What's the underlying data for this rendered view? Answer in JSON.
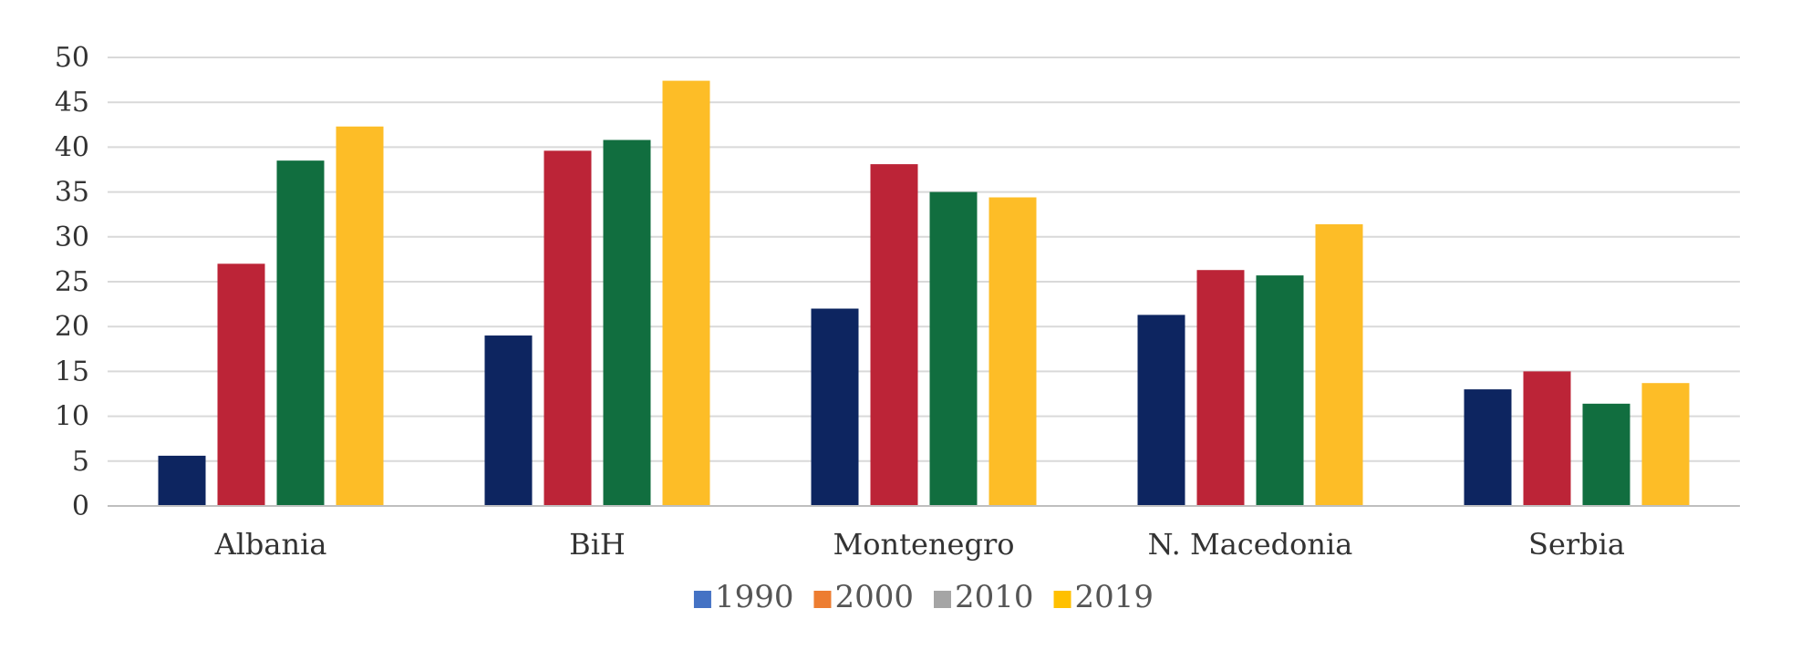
{
  "chart_data": {
    "type": "bar",
    "title": "",
    "xlabel": "",
    "ylabel": "",
    "categories": [
      "Albania",
      "BiH",
      "Montenegro",
      "N. Macedonia",
      "Serbia"
    ],
    "series": [
      {
        "name": "1990",
        "values": [
          5.6,
          19.0,
          22.0,
          21.3,
          13.0
        ],
        "color": "#0d2560",
        "legend_color": "#4472c4"
      },
      {
        "name": "2000",
        "values": [
          27.0,
          39.6,
          38.1,
          26.3,
          15.0
        ],
        "color": "#bc2437",
        "legend_color": "#ed7d31"
      },
      {
        "name": "2010",
        "values": [
          38.5,
          40.8,
          35.0,
          25.7,
          11.4
        ],
        "color": "#116e3f",
        "legend_color": "#a5a5a5"
      },
      {
        "name": "2019",
        "values": [
          42.3,
          47.4,
          34.4,
          31.4,
          13.7
        ],
        "color": "#fdbd27",
        "legend_color": "#ffc000"
      }
    ],
    "ylim": [
      0,
      50
    ],
    "yticks": [
      0,
      5,
      10,
      15,
      20,
      25,
      30,
      35,
      40,
      45,
      50
    ],
    "grid": true,
    "legend_position": "bottom"
  }
}
